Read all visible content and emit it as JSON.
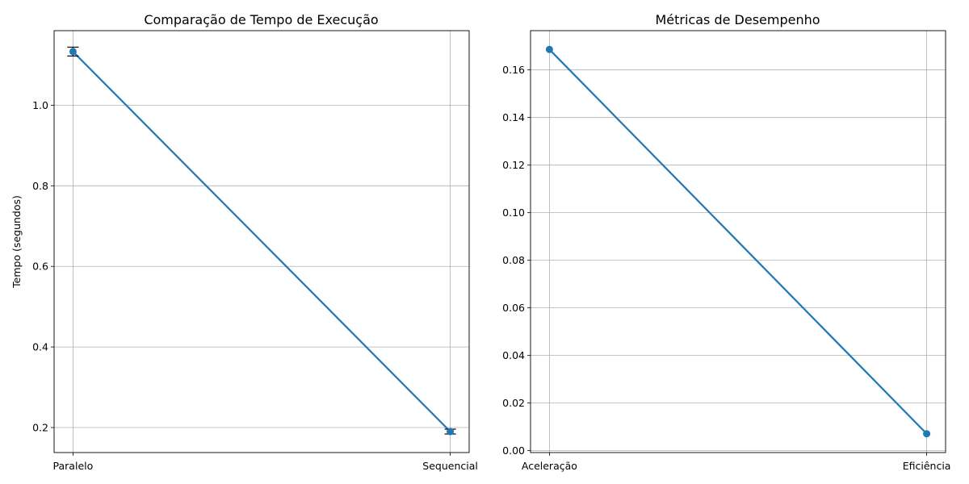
{
  "chart_data": [
    {
      "type": "line",
      "title": "Comparação de Tempo de Execução",
      "xlabel": "",
      "ylabel": "Tempo (segundos)",
      "categories": [
        "Paralelo",
        "Sequencial"
      ],
      "values": [
        1.133,
        0.19
      ],
      "error": [
        0.011,
        0.006
      ],
      "ylim": [
        0.138,
        1.185
      ],
      "yticks": [
        0.2,
        0.4,
        0.6,
        0.8,
        1.0
      ],
      "ytick_labels": [
        "0.2",
        "0.4",
        "0.6",
        "0.8",
        "1.0"
      ],
      "grid": true,
      "error_bars": true,
      "line_color": "#1f77b4",
      "error_color": "#000000"
    },
    {
      "type": "line",
      "title": "Métricas de Desempenho",
      "xlabel": "",
      "ylabel": "",
      "categories": [
        "Aceleração",
        "Eficiência"
      ],
      "values": [
        0.1686,
        0.0071
      ],
      "ylim": [
        -0.0008,
        0.1765
      ],
      "yticks": [
        0.0,
        0.02,
        0.04,
        0.06,
        0.08,
        0.1,
        0.12,
        0.14,
        0.16
      ],
      "ytick_labels": [
        "0.00",
        "0.02",
        "0.04",
        "0.06",
        "0.08",
        "0.10",
        "0.12",
        "0.14",
        "0.16"
      ],
      "grid": true,
      "error_bars": false,
      "line_color": "#1f77b4"
    }
  ]
}
